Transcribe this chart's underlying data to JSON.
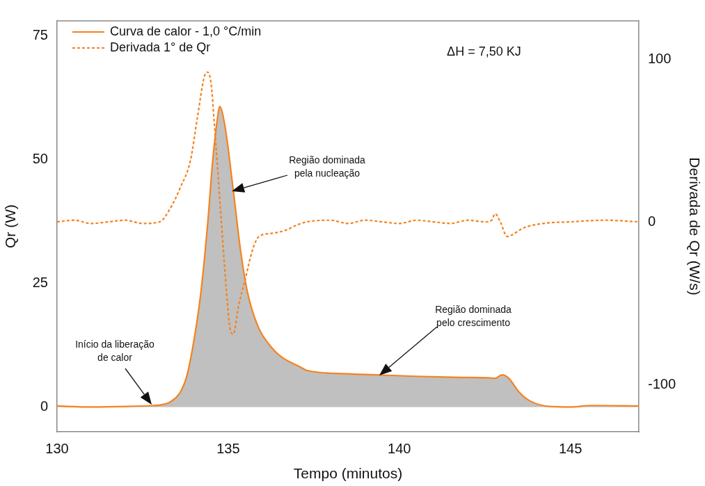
{
  "chart_data": {
    "type": "line",
    "xlabel": "Tempo (minutos)",
    "ylabel": "Qr (W)",
    "y2label": "Derivada de Qr (W/s)",
    "xlim": [
      130,
      147
    ],
    "xticks": [
      130,
      135,
      140,
      145
    ],
    "ylim": [
      -5,
      78
    ],
    "yticks": [
      0,
      25,
      50,
      75
    ],
    "y2lim": [
      -129,
      123.5
    ],
    "y2ticks": [
      -100,
      0,
      100
    ],
    "legend": "top left",
    "grid": false,
    "series": [
      {
        "name": "Curva de calor - 1,0 °C/min",
        "type": "area",
        "color": "#f5821f",
        "line_style": "solid",
        "x": [
          130,
          131,
          132,
          132.8,
          133.0,
          133.3,
          133.6,
          133.8,
          134.0,
          134.2,
          134.4,
          134.55,
          134.7,
          134.75,
          134.9,
          135.15,
          135.36,
          135.56,
          135.87,
          136.27,
          136.58,
          137.1,
          137.3,
          138.5,
          139.3,
          140.5,
          141.6,
          142.6,
          142.8,
          143.0,
          143.2,
          143.5,
          143.8,
          144.4,
          145.0,
          145.6,
          147
        ],
        "values": [
          0.2,
          0,
          0.1,
          0.3,
          0.4,
          1,
          3,
          6.5,
          13.5,
          23,
          37,
          50,
          59,
          60.7,
          57,
          43.7,
          31.7,
          23.3,
          16.3,
          12,
          10,
          8.1,
          7.4,
          6.7,
          6.5,
          6.2,
          6.0,
          5.9,
          5.8,
          6.5,
          5.8,
          3,
          1.3,
          0.1,
          0,
          0.3,
          0.2
        ]
      },
      {
        "name": "Derivada 1° de Qr",
        "type": "line",
        "axis": "y2",
        "color": "#f5821f",
        "line_style": "dashed",
        "x": [
          130,
          130.5,
          131,
          131.5,
          132,
          132.5,
          133,
          133.3,
          133.6,
          133.9,
          134.1,
          134.3,
          134.4,
          134.5,
          134.6,
          134.8,
          134.95,
          135.05,
          135.15,
          135.3,
          135.5,
          135.7,
          135.9,
          136.3,
          136.7,
          137.0,
          137.3,
          138,
          138.5,
          139,
          139.5,
          140,
          140.5,
          141,
          141.5,
          142,
          142.5,
          142.7,
          142.8,
          142.95,
          143.15,
          143.3,
          143.6,
          144.2,
          145,
          146,
          147
        ],
        "values": [
          0,
          1,
          -1,
          0,
          1,
          -1,
          0,
          8,
          21,
          38,
          64,
          89,
          92,
          85,
          59,
          0,
          -43,
          -65,
          -69,
          -52,
          -35,
          -18,
          -9,
          -7,
          -5,
          -2,
          0,
          1,
          -1,
          1,
          0,
          -1,
          1,
          0,
          -1,
          1,
          0,
          1,
          5,
          0,
          -9,
          -8,
          -4,
          -1,
          0,
          1,
          0
        ]
      }
    ],
    "annotations": [
      "ΔH = 7,50 KJ",
      "Região dominada\npela nucleação",
      "Região dominada\npelo crescimento",
      "Início da liberação\nde calor"
    ]
  }
}
